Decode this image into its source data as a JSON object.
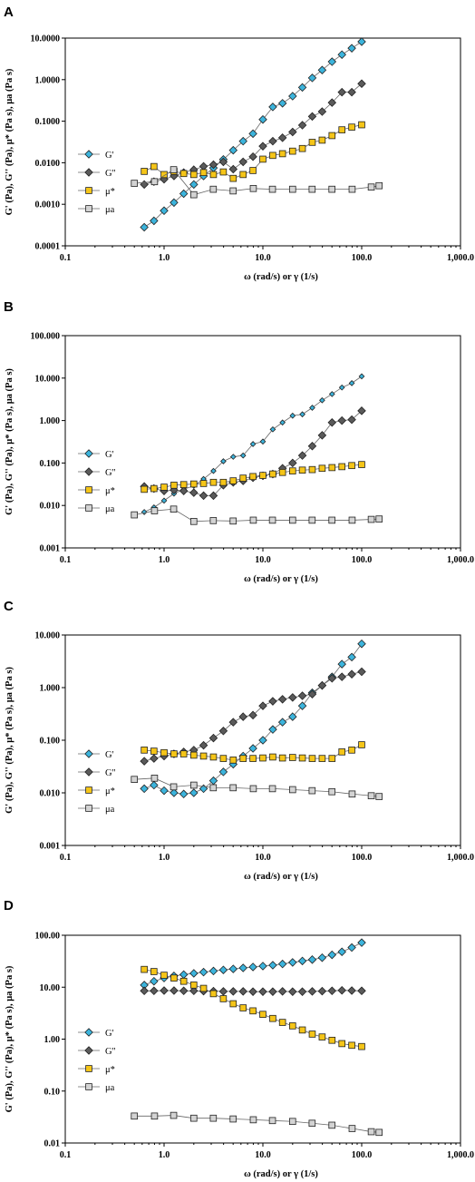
{
  "colors": {
    "G_prime": "#3cb4dc",
    "G_double_prime": "#5a5a5a",
    "mu_star": "#f5c518",
    "mu_a": "#d3d3d3",
    "marker_stroke": "#222222",
    "line": "#666666"
  },
  "chart_data": [
    {
      "panel": "A",
      "type": "scatter",
      "xscale": "log",
      "yscale": "log",
      "xlim": [
        0.1,
        1000
      ],
      "ylim": [
        0.0001,
        10
      ],
      "xticks": [
        "0.1",
        "1.0",
        "10.0",
        "100.0",
        "1,000.0"
      ],
      "yticks": [
        "0.0001",
        "0.0010",
        "0.0100",
        "0.1000",
        "1.0000",
        "10.0000"
      ],
      "xlabel": "ω (rad/s) or γ (1/s)",
      "ylabel": "G' (Pa), G'' (Pa), μ* (Pa s), μa (Pa s)",
      "legend_position": "left-middle",
      "grid": false,
      "series": [
        {
          "name": "G'",
          "marker": "diamond",
          "color_key": "G_prime",
          "x": [
            0.63,
            0.79,
            1.0,
            1.26,
            1.58,
            2.0,
            2.51,
            3.16,
            3.98,
            5.01,
            6.31,
            7.94,
            10.0,
            12.6,
            15.8,
            20.0,
            25.1,
            31.6,
            39.8,
            50.1,
            63.1,
            79.4,
            100
          ],
          "y": [
            0.00028,
            0.0004,
            0.0007,
            0.0011,
            0.0018,
            0.003,
            0.0048,
            0.0075,
            0.012,
            0.02,
            0.033,
            0.05,
            0.11,
            0.22,
            0.27,
            0.4,
            0.65,
            1.1,
            1.7,
            2.7,
            4.0,
            5.7,
            8.2
          ]
        },
        {
          "name": "G''",
          "marker": "diamond",
          "color_key": "G_double_prime",
          "x": [
            0.63,
            0.79,
            1.0,
            1.26,
            1.58,
            2.0,
            2.51,
            3.16,
            3.98,
            5.01,
            6.31,
            7.94,
            10.0,
            12.6,
            15.8,
            20.0,
            25.1,
            31.6,
            39.8,
            50.1,
            63.1,
            79.4,
            100
          ],
          "y": [
            0.003,
            0.0035,
            0.004,
            0.0048,
            0.0058,
            0.0068,
            0.0082,
            0.009,
            0.0105,
            0.007,
            0.0105,
            0.014,
            0.025,
            0.033,
            0.04,
            0.055,
            0.08,
            0.13,
            0.17,
            0.28,
            0.5,
            0.5,
            0.8
          ]
        },
        {
          "name": "μ*",
          "marker": "square",
          "color_key": "mu_star",
          "x": [
            0.63,
            0.79,
            1.0,
            1.26,
            1.58,
            2.0,
            2.51,
            3.16,
            3.98,
            5.01,
            6.31,
            7.94,
            10.0,
            12.6,
            15.8,
            20.0,
            25.1,
            31.6,
            39.8,
            50.1,
            63.1,
            79.4,
            100
          ],
          "y": [
            0.0062,
            0.0081,
            0.0052,
            0.0062,
            0.0055,
            0.0052,
            0.0058,
            0.0052,
            0.006,
            0.0042,
            0.0052,
            0.0065,
            0.0122,
            0.015,
            0.0165,
            0.019,
            0.022,
            0.031,
            0.035,
            0.045,
            0.062,
            0.072,
            0.082
          ]
        },
        {
          "name": "μa",
          "marker": "square",
          "color_key": "mu_a",
          "x": [
            0.5,
            0.8,
            1.25,
            2.0,
            3.15,
            5.0,
            8.0,
            12.5,
            20.0,
            31.5,
            50.0,
            80.0,
            125.0,
            150.0
          ],
          "y": [
            0.0032,
            0.0035,
            0.0068,
            0.0017,
            0.0023,
            0.0021,
            0.0024,
            0.0023,
            0.0023,
            0.0023,
            0.0023,
            0.0023,
            0.0026,
            0.0028
          ]
        }
      ]
    },
    {
      "panel": "B",
      "type": "scatter",
      "xscale": "log",
      "yscale": "log",
      "xlim": [
        0.1,
        1000
      ],
      "ylim": [
        0.001,
        100
      ],
      "xticks": [
        "0.1",
        "1.0",
        "10.0",
        "100.0",
        "1,000.0"
      ],
      "yticks": [
        "0.001",
        "0.010",
        "0.100",
        "1.000",
        "10.000",
        "100.000"
      ],
      "xlabel": "ω (rad/s) or γ (1/s)",
      "ylabel": "G' (Pa), G'' (Pa), μ* (Pa s), μa (Pa s)",
      "legend_position": "left-middle",
      "grid": false,
      "series": [
        {
          "name": "G'",
          "marker": "diamond-small",
          "color_key": "G_prime",
          "x": [
            0.63,
            0.79,
            1.0,
            1.26,
            1.58,
            2.0,
            2.51,
            3.16,
            3.98,
            5.01,
            6.31,
            7.94,
            10.0,
            12.6,
            15.8,
            20.0,
            25.1,
            31.6,
            39.8,
            50.1,
            63.1,
            79.4,
            100
          ],
          "y": [
            0.007,
            0.009,
            0.013,
            0.019,
            0.024,
            0.029,
            0.042,
            0.065,
            0.11,
            0.14,
            0.15,
            0.28,
            0.32,
            0.62,
            0.9,
            1.3,
            1.4,
            2.0,
            3.0,
            4.2,
            6.0,
            7.6,
            11.0
          ]
        },
        {
          "name": "G''",
          "marker": "diamond",
          "color_key": "G_double_prime",
          "x": [
            0.63,
            0.79,
            1.0,
            1.26,
            1.58,
            2.0,
            2.51,
            3.16,
            3.98,
            5.01,
            6.31,
            7.94,
            10.0,
            12.6,
            15.8,
            20.0,
            25.1,
            31.6,
            39.8,
            50.1,
            63.1,
            79.4,
            100
          ],
          "y": [
            0.028,
            0.025,
            0.022,
            0.023,
            0.022,
            0.02,
            0.017,
            0.017,
            0.03,
            0.035,
            0.038,
            0.045,
            0.05,
            0.055,
            0.075,
            0.1,
            0.15,
            0.25,
            0.45,
            0.9,
            1.0,
            1.05,
            1.7
          ]
        },
        {
          "name": "μ*",
          "marker": "square",
          "color_key": "mu_star",
          "x": [
            0.63,
            0.79,
            1.0,
            1.26,
            1.58,
            2.0,
            2.51,
            3.16,
            3.98,
            5.01,
            6.31,
            7.94,
            10.0,
            12.6,
            15.8,
            20.0,
            25.1,
            31.6,
            39.8,
            50.1,
            63.1,
            79.4,
            100
          ],
          "y": [
            0.024,
            0.025,
            0.027,
            0.03,
            0.031,
            0.032,
            0.033,
            0.035,
            0.035,
            0.038,
            0.044,
            0.048,
            0.051,
            0.055,
            0.06,
            0.065,
            0.068,
            0.07,
            0.075,
            0.078,
            0.082,
            0.087,
            0.092
          ]
        },
        {
          "name": "μa",
          "marker": "square",
          "color_key": "mu_a",
          "x": [
            0.5,
            0.8,
            1.25,
            2.0,
            3.15,
            5.0,
            8.0,
            12.5,
            20.0,
            31.5,
            50.0,
            80.0,
            125.0,
            150.0
          ],
          "y": [
            0.006,
            0.0075,
            0.0082,
            0.0042,
            0.0044,
            0.0043,
            0.0045,
            0.0045,
            0.0045,
            0.0045,
            0.0045,
            0.0045,
            0.0047,
            0.0048
          ]
        }
      ]
    },
    {
      "panel": "C",
      "type": "scatter",
      "xscale": "log",
      "yscale": "log",
      "xlim": [
        0.1,
        1000
      ],
      "ylim": [
        0.001,
        10
      ],
      "xticks": [
        "0.1",
        "1.0",
        "10.0",
        "100.0",
        "1,000.0"
      ],
      "yticks": [
        "0.001",
        "0.010",
        "0.100",
        "1.000",
        "10.000"
      ],
      "xlabel": "ω (rad/s) or γ (1/s)",
      "ylabel": "G' (Pa), G'' (Pa), μ* (Pa s), μa (Pa s)",
      "legend_position": "left-middle",
      "grid": false,
      "series": [
        {
          "name": "G'",
          "marker": "diamond",
          "color_key": "G_prime",
          "x": [
            0.63,
            0.79,
            1.0,
            1.26,
            1.58,
            2.0,
            2.51,
            3.16,
            3.98,
            5.01,
            6.31,
            7.94,
            10.0,
            12.6,
            15.8,
            20.0,
            25.1,
            31.6,
            39.8,
            50.1,
            63.1,
            79.4,
            100
          ],
          "y": [
            0.012,
            0.014,
            0.011,
            0.01,
            0.0095,
            0.01,
            0.012,
            0.017,
            0.025,
            0.035,
            0.05,
            0.07,
            0.1,
            0.16,
            0.22,
            0.28,
            0.45,
            0.8,
            1.1,
            1.6,
            2.8,
            3.8,
            6.8
          ]
        },
        {
          "name": "G''",
          "marker": "diamond",
          "color_key": "G_double_prime",
          "x": [
            0.63,
            0.79,
            1.0,
            1.26,
            1.58,
            2.0,
            2.51,
            3.16,
            3.98,
            5.01,
            6.31,
            7.94,
            10.0,
            12.6,
            15.8,
            20.0,
            25.1,
            31.6,
            39.8,
            50.1,
            63.1,
            79.4,
            100
          ],
          "y": [
            0.04,
            0.045,
            0.05,
            0.055,
            0.06,
            0.065,
            0.08,
            0.11,
            0.15,
            0.22,
            0.28,
            0.3,
            0.45,
            0.55,
            0.6,
            0.65,
            0.7,
            0.75,
            1.1,
            1.5,
            1.6,
            1.8,
            2.0
          ]
        },
        {
          "name": "μ*",
          "marker": "square",
          "color_key": "mu_star",
          "x": [
            0.63,
            0.79,
            1.0,
            1.26,
            1.58,
            2.0,
            2.51,
            3.16,
            3.98,
            5.01,
            6.31,
            7.94,
            10.0,
            12.6,
            15.8,
            20.0,
            25.1,
            31.6,
            39.8,
            50.1,
            63.1,
            79.4,
            100
          ],
          "y": [
            0.065,
            0.062,
            0.058,
            0.055,
            0.055,
            0.052,
            0.05,
            0.048,
            0.045,
            0.042,
            0.045,
            0.045,
            0.046,
            0.048,
            0.046,
            0.047,
            0.046,
            0.045,
            0.045,
            0.045,
            0.06,
            0.065,
            0.082
          ]
        },
        {
          "name": "μa",
          "marker": "square",
          "color_key": "mu_a",
          "x": [
            0.5,
            0.8,
            1.25,
            2.0,
            3.15,
            5.0,
            8.0,
            12.5,
            20.0,
            31.5,
            50.0,
            80.0,
            125.0,
            150.0
          ],
          "y": [
            0.018,
            0.019,
            0.013,
            0.014,
            0.0125,
            0.0125,
            0.012,
            0.012,
            0.0115,
            0.011,
            0.0105,
            0.0095,
            0.0088,
            0.0085
          ]
        }
      ]
    },
    {
      "panel": "D",
      "type": "scatter",
      "xscale": "log",
      "yscale": "log",
      "xlim": [
        0.1,
        1000
      ],
      "ylim": [
        0.01,
        100
      ],
      "xticks": [
        "0.1",
        "1.0",
        "10.0",
        "100.0",
        "1,000.0"
      ],
      "yticks": [
        "0.01",
        "0.10",
        "1.00",
        "10.00",
        "100.00"
      ],
      "xlabel": "ω (rad/s) or γ (1/s)",
      "ylabel": "G' (Pa), G'' (Pa), μ* (Pa s), μa (Pa s)",
      "legend_position": "left-middle",
      "grid": false,
      "series": [
        {
          "name": "G'",
          "marker": "diamond",
          "color_key": "G_prime",
          "x": [
            0.63,
            0.79,
            1.0,
            1.26,
            1.58,
            2.0,
            2.51,
            3.16,
            3.98,
            5.01,
            6.31,
            7.94,
            10.0,
            12.6,
            15.8,
            20.0,
            25.1,
            31.6,
            39.8,
            50.1,
            63.1,
            79.4,
            100
          ],
          "y": [
            11.0,
            13.0,
            15.0,
            16.5,
            17.5,
            18.5,
            19.5,
            20.5,
            21.5,
            22.5,
            23.5,
            24.5,
            25.5,
            26.5,
            28.0,
            30.0,
            32.0,
            34.0,
            37.0,
            42.0,
            48.0,
            58.0,
            72.0
          ]
        },
        {
          "name": "G''",
          "marker": "diamond",
          "color_key": "G_double_prime",
          "x": [
            0.63,
            0.79,
            1.0,
            1.26,
            1.58,
            2.0,
            2.51,
            3.16,
            3.98,
            5.01,
            6.31,
            7.94,
            10.0,
            12.6,
            15.8,
            20.0,
            25.1,
            31.6,
            39.8,
            50.1,
            63.1,
            79.4,
            100
          ],
          "y": [
            8.5,
            8.5,
            8.6,
            8.6,
            8.5,
            8.5,
            8.4,
            8.4,
            8.3,
            8.3,
            8.3,
            8.2,
            8.2,
            8.2,
            8.3,
            8.2,
            8.2,
            8.3,
            8.4,
            8.5,
            8.7,
            8.6,
            8.5
          ]
        },
        {
          "name": "μ*",
          "marker": "square",
          "color_key": "mu_star",
          "x": [
            0.63,
            0.79,
            1.0,
            1.26,
            1.58,
            2.0,
            2.51,
            3.16,
            3.98,
            5.01,
            6.31,
            7.94,
            10.0,
            12.6,
            15.8,
            20.0,
            25.1,
            31.6,
            39.8,
            50.1,
            63.1,
            79.4,
            100
          ],
          "y": [
            22.0,
            20.0,
            17.0,
            15.0,
            13.0,
            11.0,
            9.5,
            7.5,
            6.0,
            4.8,
            4.0,
            3.5,
            3.0,
            2.5,
            2.1,
            1.8,
            1.5,
            1.25,
            1.1,
            0.95,
            0.82,
            0.76,
            0.72
          ]
        },
        {
          "name": "μa",
          "marker": "square",
          "color_key": "mu_a",
          "x": [
            0.5,
            0.8,
            1.25,
            2.0,
            3.15,
            5.0,
            8.0,
            12.5,
            20.0,
            31.5,
            50.0,
            80.0,
            125.0,
            150.0
          ],
          "y": [
            0.033,
            0.033,
            0.034,
            0.03,
            0.03,
            0.029,
            0.028,
            0.027,
            0.026,
            0.024,
            0.022,
            0.019,
            0.0165,
            0.016
          ]
        }
      ]
    }
  ]
}
